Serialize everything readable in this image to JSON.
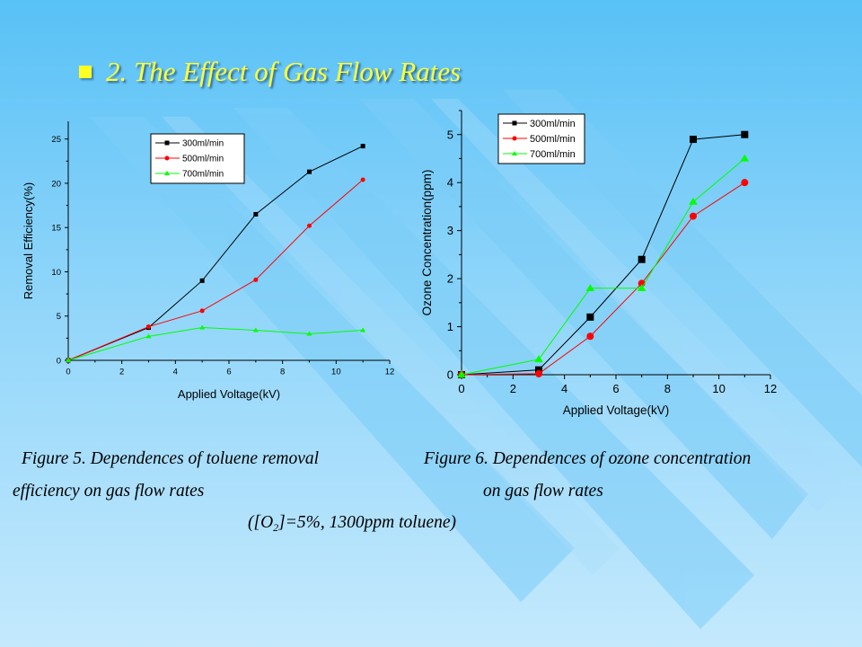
{
  "title": "2. The Effect of Gas Flow Rates",
  "colors": {
    "title": "#ffff33",
    "series": [
      "#000000",
      "#ff0000",
      "#00ff00"
    ]
  },
  "chart_data": [
    {
      "type": "line",
      "title": "",
      "xlabel": "Applied Voltage(kV)",
      "ylabel": "Removal Efficiency(%)",
      "xlim": [
        0,
        12
      ],
      "ylim": [
        0,
        27
      ],
      "xticks": [
        0,
        2,
        4,
        6,
        8,
        10,
        12
      ],
      "yticks": [
        0,
        5,
        10,
        15,
        20,
        25
      ],
      "grid": false,
      "legend_position": "top-right",
      "series": [
        {
          "name": "300ml/min",
          "marker": "square",
          "x": [
            0,
            3,
            5,
            7,
            9,
            11
          ],
          "y": [
            0,
            3.7,
            9.0,
            16.5,
            21.3,
            24.2
          ]
        },
        {
          "name": "500ml/min",
          "marker": "circle",
          "x": [
            0,
            3,
            5,
            7,
            9,
            11
          ],
          "y": [
            0,
            3.8,
            5.6,
            9.1,
            15.2,
            20.4
          ]
        },
        {
          "name": "700ml/min",
          "marker": "triangle",
          "x": [
            0,
            3,
            5,
            7,
            9,
            11
          ],
          "y": [
            0,
            2.7,
            3.7,
            3.4,
            3.0,
            3.4
          ]
        }
      ]
    },
    {
      "type": "line",
      "title": "",
      "xlabel": "Applied Voltage(kV)",
      "ylabel": "Ozone Concentration(ppm)",
      "xlim": [
        0,
        12
      ],
      "ylim": [
        0,
        5.5
      ],
      "xticks": [
        0,
        2,
        4,
        6,
        8,
        10,
        12
      ],
      "yticks": [
        0,
        1,
        2,
        3,
        4,
        5
      ],
      "grid": false,
      "legend_position": "top-left",
      "series": [
        {
          "name": "300ml/min",
          "marker": "square",
          "x": [
            0,
            3,
            5,
            7,
            9,
            11
          ],
          "y": [
            0,
            0.1,
            1.2,
            2.4,
            4.9,
            5.0
          ]
        },
        {
          "name": "500ml/min",
          "marker": "circle",
          "x": [
            0,
            3,
            5,
            7,
            9,
            11
          ],
          "y": [
            0,
            0.02,
            0.8,
            1.9,
            3.3,
            4.0
          ]
        },
        {
          "name": "700ml/min",
          "marker": "triangle",
          "x": [
            0,
            3,
            5,
            7,
            9,
            11
          ],
          "y": [
            0,
            0.32,
            1.8,
            1.8,
            3.6,
            4.5
          ]
        }
      ]
    }
  ],
  "captions": {
    "fig5_line1": "Figure 5. Dependences of toluene removal",
    "fig5_line2": "efficiency on gas flow rates",
    "fig6_line1": "Figure 6. Dependences of ozone concentration",
    "fig6_line2": "on gas flow rates",
    "conditions_open": "([O",
    "conditions_sub": "2",
    "conditions_close": "]=5%, 1300ppm toluene)"
  }
}
